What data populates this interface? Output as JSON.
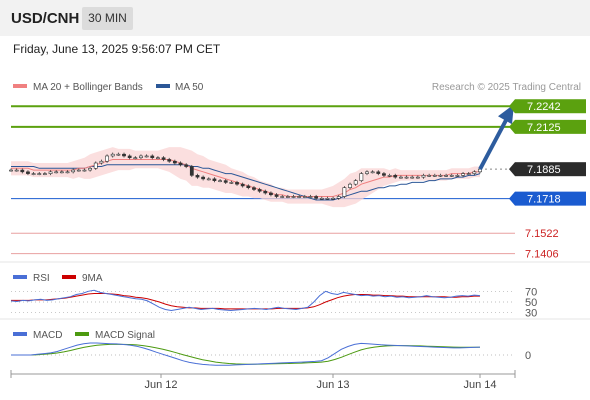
{
  "header": {
    "symbol": "USD/CNH",
    "timeframe": "30 MIN"
  },
  "datetime": "Friday, June 13, 2025 9:56:07 PM CET",
  "credit": "Research © 2025 Trading Central",
  "colors": {
    "ma20": "#f08080",
    "ma50": "#2b5797",
    "resistance": "#5ba10f",
    "support": "#1a5bd0",
    "last": "#2b2b2b",
    "minor": "#e8a0a0",
    "rsi": "#4a6fd6",
    "rsi_ma": "#cc0000",
    "macd": "#4a6fd6",
    "macd_signal": "#4c9a10",
    "arrow": "#2d5c9e"
  },
  "chart_data": [
    {
      "type": "line",
      "panel": "price",
      "legend": [
        {
          "name": "MA 20 + Bollinger Bands",
          "color": "#f08080"
        },
        {
          "name": "MA 50",
          "color": "#2b5797"
        }
      ],
      "x_ticks": [
        "Jun 12",
        "Jun 13",
        "Jun 14"
      ],
      "ylim": [
        7.137,
        7.23
      ],
      "levels": [
        {
          "label": "7.2242",
          "value": 7.2242,
          "kind": "resistance"
        },
        {
          "label": "7.2125",
          "value": 7.2125,
          "kind": "resistance"
        },
        {
          "label": "7.1885",
          "value": 7.1885,
          "kind": "last"
        },
        {
          "label": "7.1718",
          "value": 7.1718,
          "kind": "support"
        },
        {
          "label": "7.1522",
          "value": 7.1522,
          "kind": "minor"
        },
        {
          "label": "7.1406",
          "value": 7.1406,
          "kind": "minor"
        }
      ],
      "close": [
        7.188,
        7.188,
        7.187,
        7.186,
        7.186,
        7.186,
        7.186,
        7.187,
        7.187,
        7.187,
        7.187,
        7.188,
        7.188,
        7.188,
        7.189,
        7.192,
        7.193,
        7.196,
        7.197,
        7.197,
        7.196,
        7.195,
        7.195,
        7.196,
        7.196,
        7.195,
        7.195,
        7.194,
        7.193,
        7.192,
        7.191,
        7.19,
        7.185,
        7.184,
        7.183,
        7.183,
        7.182,
        7.182,
        7.181,
        7.181,
        7.18,
        7.179,
        7.178,
        7.177,
        7.176,
        7.175,
        7.174,
        7.173,
        7.173,
        7.173,
        7.173,
        7.173,
        7.173,
        7.173,
        7.172,
        7.172,
        7.172,
        7.172,
        7.173,
        7.178,
        7.18,
        7.182,
        7.186,
        7.187,
        7.187,
        7.186,
        7.185,
        7.185,
        7.184,
        7.184,
        7.184,
        7.184,
        7.184,
        7.185,
        7.185,
        7.185,
        7.185,
        7.185,
        7.185,
        7.185,
        7.186,
        7.186,
        7.187,
        7.1885
      ],
      "ma20": [
        7.189,
        7.189,
        7.189,
        7.189,
        7.188,
        7.188,
        7.188,
        7.188,
        7.188,
        7.188,
        7.188,
        7.188,
        7.189,
        7.189,
        7.19,
        7.191,
        7.192,
        7.193,
        7.194,
        7.194,
        7.194,
        7.194,
        7.194,
        7.194,
        7.194,
        7.194,
        7.194,
        7.194,
        7.194,
        7.193,
        7.192,
        7.191,
        7.189,
        7.188,
        7.187,
        7.186,
        7.185,
        7.184,
        7.183,
        7.182,
        7.181,
        7.18,
        7.179,
        7.178,
        7.177,
        7.176,
        7.175,
        7.174,
        7.174,
        7.173,
        7.173,
        7.173,
        7.173,
        7.173,
        7.173,
        7.173,
        7.173,
        7.173,
        7.174,
        7.175,
        7.177,
        7.178,
        7.18,
        7.181,
        7.182,
        7.183,
        7.184,
        7.184,
        7.185,
        7.185,
        7.185,
        7.185,
        7.185,
        7.185,
        7.185,
        7.185,
        7.185,
        7.185,
        7.186,
        7.186,
        7.186,
        7.186,
        7.187,
        7.187
      ],
      "bb_width": [
        0.004,
        0.004,
        0.004,
        0.004,
        0.004,
        0.004,
        0.004,
        0.004,
        0.004,
        0.004,
        0.004,
        0.005,
        0.005,
        0.006,
        0.007,
        0.007,
        0.007,
        0.007,
        0.007,
        0.006,
        0.006,
        0.006,
        0.005,
        0.005,
        0.005,
        0.005,
        0.005,
        0.006,
        0.007,
        0.008,
        0.009,
        0.009,
        0.01,
        0.009,
        0.009,
        0.008,
        0.008,
        0.008,
        0.008,
        0.007,
        0.007,
        0.007,
        0.006,
        0.006,
        0.005,
        0.005,
        0.005,
        0.004,
        0.004,
        0.004,
        0.004,
        0.004,
        0.004,
        0.004,
        0.004,
        0.004,
        0.005,
        0.006,
        0.007,
        0.008,
        0.009,
        0.009,
        0.009,
        0.008,
        0.007,
        0.006,
        0.005,
        0.004,
        0.004,
        0.003,
        0.003,
        0.003,
        0.003,
        0.003,
        0.003,
        0.003,
        0.003,
        0.003,
        0.003,
        0.003,
        0.003,
        0.003,
        0.003,
        0.003
      ],
      "ma50": [
        7.19,
        7.19,
        7.19,
        7.19,
        7.19,
        7.189,
        7.189,
        7.189,
        7.189,
        7.189,
        7.189,
        7.189,
        7.189,
        7.189,
        7.19,
        7.19,
        7.19,
        7.191,
        7.191,
        7.191,
        7.191,
        7.191,
        7.191,
        7.191,
        7.191,
        7.191,
        7.191,
        7.191,
        7.191,
        7.191,
        7.191,
        7.191,
        7.19,
        7.19,
        7.189,
        7.189,
        7.188,
        7.187,
        7.186,
        7.186,
        7.185,
        7.184,
        7.183,
        7.182,
        7.181,
        7.18,
        7.179,
        7.178,
        7.177,
        7.176,
        7.175,
        7.174,
        7.173,
        7.172,
        7.171,
        7.171,
        7.171,
        7.171,
        7.172,
        7.173,
        7.174,
        7.175,
        7.176,
        7.176,
        7.177,
        7.178,
        7.178,
        7.179,
        7.179,
        7.18,
        7.18,
        7.181,
        7.181,
        7.181,
        7.182,
        7.182,
        7.183,
        7.183,
        7.183,
        7.184,
        7.184,
        7.185,
        7.185,
        7.186
      ],
      "projection": [
        7.1885,
        7.2242
      ]
    },
    {
      "type": "line",
      "panel": "rsi",
      "legend": [
        {
          "name": "RSI",
          "color": "#4a6fd6"
        },
        {
          "name": "9MA",
          "color": "#cc0000"
        }
      ],
      "ylim": [
        20,
        80
      ],
      "levels": [
        70,
        50,
        30
      ],
      "rsi": [
        52,
        51,
        53,
        52,
        54,
        55,
        53,
        54,
        56,
        58,
        60,
        64,
        66,
        70,
        72,
        68,
        66,
        64,
        62,
        60,
        58,
        56,
        55,
        52,
        46,
        40,
        36,
        34,
        36,
        38,
        40,
        38,
        36,
        37,
        38,
        36,
        35,
        34,
        35,
        36,
        37,
        38,
        37,
        36,
        38,
        40,
        38,
        37,
        36,
        38,
        40,
        50,
        62,
        70,
        66,
        64,
        68,
        66,
        64,
        62,
        63,
        61,
        62,
        60,
        61,
        59,
        60,
        58,
        59,
        60,
        62,
        60,
        59,
        58,
        59,
        61,
        62,
        61,
        63,
        62
      ],
      "rsi_ma": [
        53,
        53,
        53,
        53,
        54,
        54,
        54,
        55,
        56,
        57,
        59,
        61,
        63,
        65,
        66,
        66,
        66,
        65,
        64,
        62,
        61,
        59,
        58,
        56,
        53,
        50,
        46,
        43,
        41,
        40,
        39,
        39,
        38,
        38,
        38,
        38,
        37,
        37,
        37,
        37,
        37,
        37,
        37,
        37,
        37,
        38,
        38,
        38,
        38,
        38,
        39,
        41,
        45,
        50,
        54,
        58,
        61,
        63,
        64,
        64,
        64,
        63,
        63,
        62,
        62,
        61,
        61,
        60,
        60,
        60,
        60,
        60,
        60,
        60,
        59,
        59,
        60,
        60,
        61,
        61
      ]
    },
    {
      "type": "line",
      "panel": "macd",
      "legend": [
        {
          "name": "MACD",
          "color": "#4a6fd6"
        },
        {
          "name": "MACD Signal",
          "color": "#4c9a10"
        }
      ],
      "ylim": [
        -1.2,
        1.2
      ],
      "zero_label": "0",
      "macd": [
        0.0,
        0.0,
        0.0,
        0.0,
        0.05,
        0.1,
        0.15,
        0.25,
        0.4,
        0.55,
        0.7,
        0.8,
        0.85,
        0.85,
        0.82,
        0.8,
        0.78,
        0.74,
        0.7,
        0.62,
        0.5,
        0.36,
        0.2,
        0.05,
        -0.1,
        -0.25,
        -0.4,
        -0.52,
        -0.6,
        -0.66,
        -0.7,
        -0.72,
        -0.73,
        -0.72,
        -0.7,
        -0.68,
        -0.66,
        -0.64,
        -0.62,
        -0.6,
        -0.58,
        -0.56,
        -0.54,
        -0.52,
        -0.5,
        -0.48,
        -0.45,
        -0.4,
        -0.2,
        0.1,
        0.4,
        0.6,
        0.75,
        0.82,
        0.8,
        0.76,
        0.72,
        0.7,
        0.68,
        0.66,
        0.64,
        0.62,
        0.6,
        0.58,
        0.56,
        0.54,
        0.52,
        0.5,
        0.5,
        0.52,
        0.54,
        0.56
      ],
      "macd_signal": [
        0.0,
        0.0,
        0.0,
        0.0,
        0.02,
        0.05,
        0.09,
        0.14,
        0.22,
        0.32,
        0.43,
        0.54,
        0.62,
        0.69,
        0.73,
        0.75,
        0.76,
        0.75,
        0.74,
        0.71,
        0.66,
        0.59,
        0.5,
        0.4,
        0.29,
        0.16,
        0.03,
        -0.1,
        -0.22,
        -0.33,
        -0.42,
        -0.5,
        -0.56,
        -0.6,
        -0.63,
        -0.64,
        -0.65,
        -0.65,
        -0.64,
        -0.63,
        -0.62,
        -0.61,
        -0.6,
        -0.58,
        -0.57,
        -0.55,
        -0.53,
        -0.5,
        -0.44,
        -0.32,
        -0.16,
        0.02,
        0.2,
        0.36,
        0.48,
        0.56,
        0.61,
        0.64,
        0.66,
        0.66,
        0.66,
        0.65,
        0.64,
        0.62,
        0.61,
        0.59,
        0.57,
        0.56,
        0.55,
        0.55,
        0.55,
        0.55
      ]
    }
  ]
}
